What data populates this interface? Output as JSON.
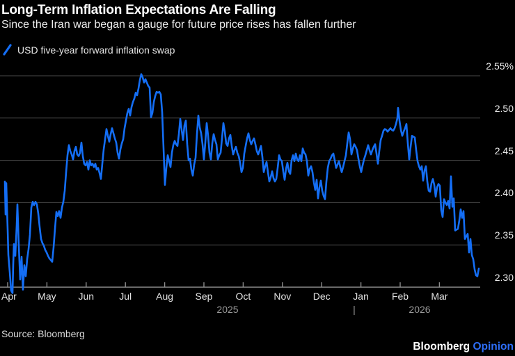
{
  "header": {
    "title": "Long-Term Inflation Expectations Are Falling",
    "subtitle": "Since the Iran war began a gauge for future price rises has fallen further",
    "legend": {
      "label": "USD five-year forward inflation swap",
      "marker_color": "#146ef5"
    }
  },
  "footer": {
    "source": "Source: Bloomberg",
    "brand_name": "Bloomberg",
    "brand_edition": "Opinion",
    "brand_edition_color": "#2e6ef8"
  },
  "colors": {
    "background": "#000000",
    "line": "#146ef5",
    "gridline": "#4a4a4a",
    "axis": "#8c8c8c"
  },
  "chart_data": {
    "type": "line",
    "series_name": "USD five-year forward inflation swap",
    "unit": "%",
    "title": "Long-Term Inflation Expectations Are Falling",
    "grid": true,
    "legend_position": "top-left",
    "y_axis": {
      "side": "right",
      "tick_labels": [
        "2.55%",
        "2.50",
        "2.45",
        "2.40",
        "2.35",
        "2.30"
      ],
      "tick_values": [
        2.55,
        2.5,
        2.45,
        2.4,
        2.35,
        2.3
      ],
      "range": [
        2.3,
        2.55
      ]
    },
    "x_axis": {
      "months": [
        "Apr",
        "May",
        "Jun",
        "Jul",
        "Aug",
        "Sep",
        "Oct",
        "Nov",
        "Dec",
        "Jan",
        "Feb",
        "Mar"
      ],
      "year_left": "2025",
      "year_divider": "|",
      "year_right": "2026"
    },
    "x_encoding": "pixel position along plot; Apr tick = 11 px, one month = 56.4 px, plot right edge = 690 px",
    "points": [
      [
        7,
        2.425
      ],
      [
        8,
        2.386
      ],
      [
        9,
        2.423
      ],
      [
        10,
        2.395
      ],
      [
        11,
        2.368
      ],
      [
        12,
        2.338
      ],
      [
        14,
        2.318
      ],
      [
        16,
        2.296
      ],
      [
        18,
        2.293
      ],
      [
        19,
        2.327
      ],
      [
        20,
        2.351
      ],
      [
        22,
        2.337
      ],
      [
        24,
        2.373
      ],
      [
        25,
        2.398
      ],
      [
        27,
        2.349
      ],
      [
        29,
        2.309
      ],
      [
        31,
        2.336
      ],
      [
        33,
        2.297
      ],
      [
        35,
        2.326
      ],
      [
        37,
        2.313
      ],
      [
        39,
        2.333
      ],
      [
        41,
        2.345
      ],
      [
        43,
        2.362
      ],
      [
        45,
        2.394
      ],
      [
        47,
        2.401
      ],
      [
        49,
        2.397
      ],
      [
        51,
        2.401
      ],
      [
        53,
        2.398
      ],
      [
        55,
        2.387
      ],
      [
        57,
        2.371
      ],
      [
        59,
        2.357
      ],
      [
        61,
        2.352
      ],
      [
        63,
        2.349
      ],
      [
        65,
        2.344
      ],
      [
        67,
        2.341
      ],
      [
        69,
        2.337
      ],
      [
        71,
        2.334
      ],
      [
        73,
        2.332
      ],
      [
        75,
        2.33
      ],
      [
        77,
        2.347
      ],
      [
        79,
        2.369
      ],
      [
        81,
        2.389
      ],
      [
        83,
        2.384
      ],
      [
        85,
        2.39
      ],
      [
        87,
        2.382
      ],
      [
        89,
        2.394
      ],
      [
        91,
        2.401
      ],
      [
        93,
        2.414
      ],
      [
        95,
        2.436
      ],
      [
        97,
        2.456
      ],
      [
        99,
        2.468
      ],
      [
        101,
        2.461
      ],
      [
        103,
        2.457
      ],
      [
        105,
        2.451
      ],
      [
        107,
        2.461
      ],
      [
        109,
        2.466
      ],
      [
        111,
        2.457
      ],
      [
        113,
        2.455
      ],
      [
        115,
        2.459
      ],
      [
        117,
        2.471
      ],
      [
        119,
        2.455
      ],
      [
        121,
        2.446
      ],
      [
        123,
        2.444
      ],
      [
        125,
        2.448
      ],
      [
        127,
        2.439
      ],
      [
        129,
        2.45
      ],
      [
        131,
        2.444
      ],
      [
        133,
        2.446
      ],
      [
        135,
        2.442
      ],
      [
        137,
        2.446
      ],
      [
        139,
        2.439
      ],
      [
        141,
        2.441
      ],
      [
        143,
        2.435
      ],
      [
        145,
        2.428
      ],
      [
        147,
        2.446
      ],
      [
        149,
        2.463
      ],
      [
        151,
        2.475
      ],
      [
        153,
        2.487
      ],
      [
        155,
        2.479
      ],
      [
        157,
        2.472
      ],
      [
        159,
        2.481
      ],
      [
        161,
        2.488
      ],
      [
        163,
        2.482
      ],
      [
        165,
        2.476
      ],
      [
        167,
        2.471
      ],
      [
        169,
        2.459
      ],
      [
        171,
        2.452
      ],
      [
        173,
        2.463
      ],
      [
        175,
        2.47
      ],
      [
        177,
        2.475
      ],
      [
        179,
        2.488
      ],
      [
        181,
        2.497
      ],
      [
        183,
        2.506
      ],
      [
        185,
        2.511
      ],
      [
        187,
        2.503
      ],
      [
        189,
        2.513
      ],
      [
        191,
        2.519
      ],
      [
        193,
        2.523
      ],
      [
        195,
        2.53
      ],
      [
        197,
        2.527
      ],
      [
        199,
        2.535
      ],
      [
        201,
        2.545
      ],
      [
        203,
        2.552
      ],
      [
        205,
        2.548
      ],
      [
        207,
        2.542
      ],
      [
        209,
        2.546
      ],
      [
        211,
        2.542
      ],
      [
        213,
        2.538
      ],
      [
        215,
        2.536
      ],
      [
        217,
        2.501
      ],
      [
        219,
        2.506
      ],
      [
        221,
        2.519
      ],
      [
        223,
        2.526
      ],
      [
        225,
        2.531
      ],
      [
        227,
        2.53
      ],
      [
        229,
        2.531
      ],
      [
        231,
        2.528
      ],
      [
        233,
        2.507
      ],
      [
        235,
        2.464
      ],
      [
        237,
        2.421
      ],
      [
        239,
        2.441
      ],
      [
        241,
        2.456
      ],
      [
        243,
        2.449
      ],
      [
        245,
        2.442
      ],
      [
        247,
        2.459
      ],
      [
        249,
        2.468
      ],
      [
        251,
        2.473
      ],
      [
        253,
        2.469
      ],
      [
        255,
        2.467
      ],
      [
        257,
        2.481
      ],
      [
        259,
        2.499
      ],
      [
        261,
        2.486
      ],
      [
        263,
        2.474
      ],
      [
        265,
        2.491
      ],
      [
        267,
        2.497
      ],
      [
        269,
        2.469
      ],
      [
        271,
        2.45
      ],
      [
        273,
        2.452
      ],
      [
        275,
        2.439
      ],
      [
        277,
        2.432
      ],
      [
        279,
        2.445
      ],
      [
        281,
        2.453
      ],
      [
        283,
        2.481
      ],
      [
        285,
        2.503
      ],
      [
        287,
        2.489
      ],
      [
        289,
        2.482
      ],
      [
        291,
        2.469
      ],
      [
        293,
        2.451
      ],
      [
        295,
        2.471
      ],
      [
        297,
        2.494
      ],
      [
        299,
        2.479
      ],
      [
        301,
        2.459
      ],
      [
        303,
        2.451
      ],
      [
        305,
        2.47
      ],
      [
        307,
        2.481
      ],
      [
        309,
        2.474
      ],
      [
        311,
        2.469
      ],
      [
        313,
        2.451
      ],
      [
        315,
        2.456
      ],
      [
        317,
        2.459
      ],
      [
        319,
        2.476
      ],
      [
        321,
        2.494
      ],
      [
        323,
        2.484
      ],
      [
        325,
        2.47
      ],
      [
        327,
        2.467
      ],
      [
        329,
        2.476
      ],
      [
        331,
        2.48
      ],
      [
        333,
        2.467
      ],
      [
        335,
        2.457
      ],
      [
        337,
        2.462
      ],
      [
        339,
        2.466
      ],
      [
        341,
        2.459
      ],
      [
        343,
        2.455
      ],
      [
        345,
        2.447
      ],
      [
        347,
        2.436
      ],
      [
        349,
        2.441
      ],
      [
        351,
        2.458
      ],
      [
        353,
        2.467
      ],
      [
        355,
        2.476
      ],
      [
        357,
        2.482
      ],
      [
        359,
        2.474
      ],
      [
        361,
        2.469
      ],
      [
        363,
        2.473
      ],
      [
        365,
        2.476
      ],
      [
        367,
        2.469
      ],
      [
        369,
        2.461
      ],
      [
        371,
        2.457
      ],
      [
        373,
        2.462
      ],
      [
        375,
        2.467
      ],
      [
        377,
        2.454
      ],
      [
        379,
        2.436
      ],
      [
        381,
        2.443
      ],
      [
        383,
        2.448
      ],
      [
        385,
        2.436
      ],
      [
        387,
        2.425
      ],
      [
        389,
        2.43
      ],
      [
        391,
        2.437
      ],
      [
        393,
        2.429
      ],
      [
        395,
        2.425
      ],
      [
        397,
        2.428
      ],
      [
        399,
        2.441
      ],
      [
        401,
        2.456
      ],
      [
        403,
        2.451
      ],
      [
        405,
        2.449
      ],
      [
        407,
        2.437
      ],
      [
        409,
        2.427
      ],
      [
        411,
        2.44
      ],
      [
        413,
        2.447
      ],
      [
        415,
        2.437
      ],
      [
        417,
        2.434
      ],
      [
        419,
        2.45
      ],
      [
        421,
        2.456
      ],
      [
        423,
        2.449
      ],
      [
        425,
        2.458
      ],
      [
        427,
        2.451
      ],
      [
        429,
        2.449
      ],
      [
        431,
        2.456
      ],
      [
        433,
        2.449
      ],
      [
        435,
        2.464
      ],
      [
        437,
        2.459
      ],
      [
        439,
        2.457
      ],
      [
        441,
        2.449
      ],
      [
        443,
        2.432
      ],
      [
        445,
        2.44
      ],
      [
        447,
        2.443
      ],
      [
        449,
        2.436
      ],
      [
        451,
        2.424
      ],
      [
        453,
        2.415
      ],
      [
        455,
        2.427
      ],
      [
        457,
        2.405
      ],
      [
        459,
        2.418
      ],
      [
        461,
        2.426
      ],
      [
        463,
        2.414
      ],
      [
        465,
        2.408
      ],
      [
        467,
        2.404
      ],
      [
        469,
        2.425
      ],
      [
        471,
        2.441
      ],
      [
        473,
        2.449
      ],
      [
        475,
        2.452
      ],
      [
        477,
        2.456
      ],
      [
        479,
        2.458
      ],
      [
        481,
        2.45
      ],
      [
        483,
        2.441
      ],
      [
        485,
        2.445
      ],
      [
        487,
        2.449
      ],
      [
        489,
        2.442
      ],
      [
        491,
        2.436
      ],
      [
        493,
        2.442
      ],
      [
        495,
        2.449
      ],
      [
        497,
        2.456
      ],
      [
        499,
        2.47
      ],
      [
        501,
        2.483
      ],
      [
        503,
        2.475
      ],
      [
        505,
        2.457
      ],
      [
        507,
        2.464
      ],
      [
        509,
        2.469
      ],
      [
        511,
        2.466
      ],
      [
        513,
        2.462
      ],
      [
        515,
        2.452
      ],
      [
        517,
        2.443
      ],
      [
        519,
        2.436
      ],
      [
        521,
        2.444
      ],
      [
        523,
        2.451
      ],
      [
        525,
        2.456
      ],
      [
        527,
        2.462
      ],
      [
        529,
        2.468
      ],
      [
        531,
        2.462
      ],
      [
        533,
        2.457
      ],
      [
        535,
        2.462
      ],
      [
        537,
        2.466
      ],
      [
        539,
        2.469
      ],
      [
        541,
        2.458
      ],
      [
        543,
        2.446
      ],
      [
        545,
        2.461
      ],
      [
        547,
        2.474
      ],
      [
        549,
        2.479
      ],
      [
        551,
        2.485
      ],
      [
        553,
        2.487
      ],
      [
        555,
        2.486
      ],
      [
        557,
        2.484
      ],
      [
        559,
        2.486
      ],
      [
        561,
        2.488
      ],
      [
        563,
        2.486
      ],
      [
        565,
        2.485
      ],
      [
        567,
        2.488
      ],
      [
        569,
        2.493
      ],
      [
        571,
        2.5
      ],
      [
        572,
        2.512
      ],
      [
        574,
        2.497
      ],
      [
        576,
        2.486
      ],
      [
        578,
        2.479
      ],
      [
        580,
        2.484
      ],
      [
        582,
        2.488
      ],
      [
        584,
        2.493
      ],
      [
        586,
        2.47
      ],
      [
        588,
        2.451
      ],
      [
        590,
        2.466
      ],
      [
        592,
        2.479
      ],
      [
        594,
        2.478
      ],
      [
        596,
        2.477
      ],
      [
        598,
        2.462
      ],
      [
        600,
        2.449
      ],
      [
        602,
        2.443
      ],
      [
        604,
        2.439
      ],
      [
        606,
        2.443
      ],
      [
        608,
        2.426
      ],
      [
        610,
        2.438
      ],
      [
        612,
        2.443
      ],
      [
        614,
        2.425
      ],
      [
        616,
        2.414
      ],
      [
        618,
        2.413
      ],
      [
        620,
        2.423
      ],
      [
        622,
        2.428
      ],
      [
        624,
        2.421
      ],
      [
        626,
        2.407
      ],
      [
        628,
        2.418
      ],
      [
        630,
        2.422
      ],
      [
        632,
        2.42
      ],
      [
        634,
        2.391
      ],
      [
        636,
        2.383
      ],
      [
        638,
        2.404
      ],
      [
        640,
        2.4
      ],
      [
        642,
        2.397
      ],
      [
        644,
        2.402
      ],
      [
        646,
        2.393
      ],
      [
        648,
        2.431
      ],
      [
        650,
        2.395
      ],
      [
        652,
        2.405
      ],
      [
        654,
        2.367
      ],
      [
        656,
        2.368
      ],
      [
        658,
        2.369
      ],
      [
        660,
        2.379
      ],
      [
        662,
        2.392
      ],
      [
        664,
        2.382
      ],
      [
        666,
        2.39
      ],
      [
        668,
        2.357
      ],
      [
        670,
        2.36
      ],
      [
        672,
        2.363
      ],
      [
        674,
        2.341
      ],
      [
        676,
        2.357
      ],
      [
        678,
        2.338
      ],
      [
        680,
        2.333
      ],
      [
        682,
        2.321
      ],
      [
        684,
        2.314
      ],
      [
        686,
        2.313
      ],
      [
        688,
        2.322
      ]
    ]
  }
}
